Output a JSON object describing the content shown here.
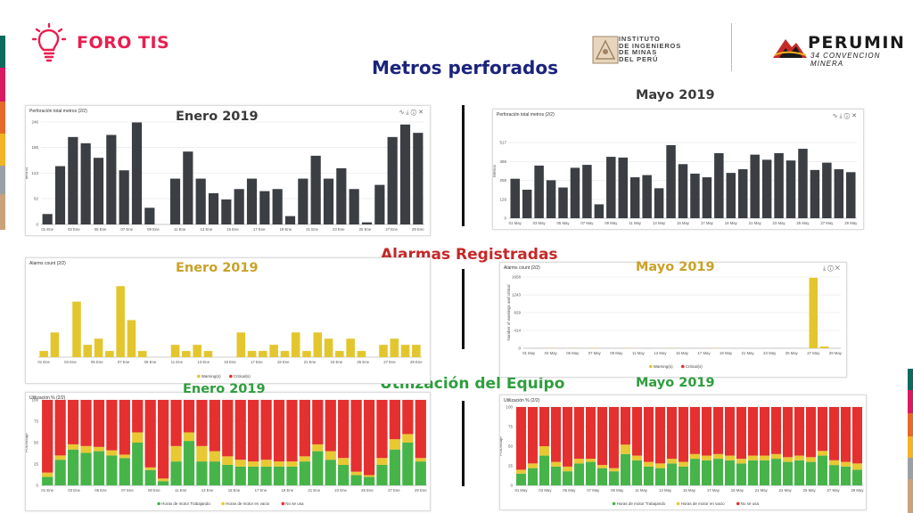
{
  "brand": {
    "name": "FORO TIS"
  },
  "logos": {
    "iimp": {
      "line1": "INSTITUTO",
      "line2": "DE INGENIEROS",
      "line3": "DE MINAS",
      "line4": "DEL PERÚ"
    },
    "perumin": {
      "name": "PERUMIN",
      "subtitle": "34 CONVENCION MINERA"
    }
  },
  "sections": {
    "metros": "Metros perforados",
    "alarmas": "Alarmas Registradas",
    "utilizacion": "Utilización del Equipo"
  },
  "months": {
    "enero": "Enero 2019",
    "mayo": "Mayo 2019"
  },
  "colors": {
    "title_blue": "#1a237e",
    "title_red": "#c62828",
    "title_green": "#2e9e3e",
    "month_dark": "#3a3a3a",
    "month_yellow": "#c9a227",
    "bar_dark": "#3b3e43",
    "warning_yellow": "#e3c62e",
    "critical_red": "#e03030",
    "worked_green": "#47b449",
    "idle_yellow": "#e8c833",
    "unused_red": "#e53030"
  },
  "chart_data": [
    {
      "id": "metros-enero",
      "type": "bar",
      "title": "Perforación total metros (2/2)",
      "ylabel": "Metros",
      "ylim": [
        0,
        246
      ],
      "yticks": [
        0,
        62,
        123,
        185,
        246
      ],
      "xtick_labels": [
        "01 Ene",
        "03 Ene",
        "05 Ene",
        "07 Ene",
        "09 Ene",
        "11 Ene",
        "13 Ene",
        "15 Ene",
        "17 Ene",
        "19 Ene",
        "21 Ene",
        "23 Ene",
        "25 Ene",
        "27 Ene",
        "29 Ene"
      ],
      "values": [
        25,
        140,
        210,
        195,
        160,
        215,
        130,
        245,
        40,
        0,
        110,
        175,
        110,
        75,
        60,
        85,
        110,
        80,
        85,
        20,
        110,
        165,
        110,
        135,
        85,
        5,
        95,
        210,
        240,
        220
      ]
    },
    {
      "id": "metros-mayo",
      "type": "bar",
      "title": "Perforación total metros (2/2)",
      "ylabel": "Metros",
      "ylim": [
        0,
        646
      ],
      "yticks": [
        0,
        129,
        258,
        388,
        517
      ],
      "xtick_labels": [
        "01 May",
        "03 May",
        "05 May",
        "07 May",
        "09 May",
        "11 May",
        "13 May",
        "15 May",
        "17 May",
        "19 May",
        "21 May",
        "23 May",
        "25 May",
        "27 May",
        "29 May"
      ],
      "values": [
        270,
        195,
        360,
        260,
        210,
        345,
        365,
        95,
        420,
        415,
        280,
        295,
        205,
        500,
        370,
        305,
        280,
        445,
        310,
        335,
        435,
        400,
        445,
        395,
        475,
        330,
        380,
        335,
        315
      ]
    },
    {
      "id": "alarmas-enero",
      "type": "bar",
      "title": "Alarms count (2/2)",
      "ylabel": "Number of warnings and critical",
      "ylim": [
        0,
        14
      ],
      "xtick_labels": [
        "01 Ene",
        "03 Ene",
        "05 Ene",
        "07 Ene",
        "09 Ene",
        "11 Ene",
        "13 Ene",
        "15 Ene",
        "17 Ene",
        "19 Ene",
        "21 Ene",
        "23 Ene",
        "25 Ene",
        "27 Ene",
        "29 Ene"
      ],
      "legend": [
        "Warning(s)",
        "Critical(s)"
      ],
      "series": [
        {
          "name": "Warning(s)",
          "values": [
            1,
            4,
            0,
            9,
            2,
            3,
            1,
            11.5,
            6,
            1,
            0,
            0,
            2,
            1,
            2,
            1,
            0,
            0,
            4,
            1,
            1,
            2,
            1,
            4,
            1,
            4,
            3,
            1,
            3,
            1,
            0,
            2,
            3,
            2,
            2
          ]
        },
        {
          "name": "Critical(s)",
          "values": [
            0,
            0,
            0,
            0,
            0,
            0,
            0,
            0,
            0,
            0,
            0,
            0,
            0,
            0,
            0,
            0,
            0,
            0,
            0,
            0,
            0,
            0,
            0,
            0,
            0,
            0,
            0,
            0,
            0,
            0,
            0,
            0,
            0,
            0,
            0
          ]
        }
      ]
    },
    {
      "id": "alarmas-mayo",
      "type": "bar",
      "title": "Alarms count (2/2)",
      "ylabel": "Number of warnings and critical",
      "ylim": [
        0,
        1658
      ],
      "yticks": [
        0,
        414,
        829,
        1243,
        1658
      ],
      "xtick_labels": [
        "01 May",
        "03 May",
        "05 May",
        "07 May",
        "09 May",
        "11 May",
        "13 May",
        "15 May",
        "17 May",
        "19 May",
        "21 May",
        "23 May",
        "25 May",
        "27 May",
        "29 May"
      ],
      "legend": [
        "Warning(s)",
        "Critical(s)"
      ],
      "series": [
        {
          "name": "Warning(s)",
          "values": [
            0,
            0,
            5,
            0,
            5,
            0,
            8,
            0,
            0,
            5,
            0,
            0,
            0,
            5,
            0,
            0,
            0,
            5,
            0,
            0,
            0,
            0,
            0,
            0,
            0,
            0,
            1640,
            40,
            0
          ]
        },
        {
          "name": "Critical(s)",
          "values": [
            0,
            0,
            0,
            0,
            0,
            0,
            0,
            0,
            0,
            0,
            0,
            0,
            0,
            0,
            0,
            0,
            0,
            0,
            0,
            0,
            0,
            0,
            0,
            0,
            0,
            0,
            0,
            0,
            0
          ]
        }
      ]
    },
    {
      "id": "utilizacion-enero",
      "type": "bar",
      "stacked": true,
      "title": "Utilización % (2/2)",
      "ylabel": "Porcentaje",
      "ylim": [
        0,
        100
      ],
      "yticks": [
        0,
        25,
        50,
        75,
        100
      ],
      "xtick_labels": [
        "01 Ene",
        "03 Ene",
        "05 Ene",
        "07 Ene",
        "09 Ene",
        "11 Ene",
        "13 Ene",
        "15 Ene",
        "17 Ene",
        "19 Ene",
        "21 Ene",
        "23 Ene",
        "25 Ene",
        "27 Ene",
        "29 Ene"
      ],
      "legend": [
        "Horas de motor Trabajando",
        "Horas de motor en vacio",
        "No se usa"
      ],
      "series": [
        {
          "name": "Horas de motor Trabajando",
          "values": [
            10,
            30,
            42,
            38,
            40,
            35,
            32,
            50,
            18,
            5,
            28,
            52,
            28,
            28,
            24,
            22,
            22,
            22,
            22,
            22,
            28,
            40,
            30,
            24,
            12,
            10,
            24,
            42,
            50,
            28
          ]
        },
        {
          "name": "Horas de motor en vacio",
          "values": [
            5,
            5,
            6,
            8,
            5,
            6,
            4,
            12,
            3,
            3,
            18,
            10,
            18,
            12,
            10,
            8,
            6,
            8,
            6,
            6,
            6,
            8,
            10,
            8,
            4,
            2,
            8,
            12,
            10,
            4
          ]
        },
        {
          "name": "No se usa",
          "values": [
            85,
            65,
            52,
            54,
            55,
            59,
            64,
            38,
            79,
            92,
            54,
            38,
            54,
            60,
            66,
            70,
            72,
            70,
            72,
            72,
            66,
            52,
            60,
            68,
            84,
            88,
            68,
            46,
            40,
            68
          ]
        }
      ]
    },
    {
      "id": "utilizacion-mayo",
      "type": "bar",
      "stacked": true,
      "title": "Utilización % (2/2)",
      "ylabel": "Porcentaje",
      "ylim": [
        0,
        100
      ],
      "yticks": [
        0,
        25,
        50,
        75,
        100
      ],
      "xtick_labels": [
        "01 May",
        "03 May",
        "05 May",
        "07 May",
        "09 May",
        "11 May",
        "13 May",
        "15 May",
        "17 May",
        "19 May",
        "21 May",
        "23 May",
        "25 May",
        "27 May",
        "29 May"
      ],
      "legend": [
        "Horas de motor Trabajando",
        "Horas de motor en vacio",
        "No se usa"
      ],
      "series": [
        {
          "name": "Horas de motor Trabajando",
          "values": [
            15,
            22,
            38,
            24,
            18,
            28,
            30,
            22,
            18,
            40,
            32,
            24,
            22,
            28,
            24,
            34,
            32,
            34,
            32,
            28,
            32,
            32,
            34,
            30,
            32,
            30,
            38,
            26,
            24,
            20
          ]
        },
        {
          "name": "Horas de motor en vacio",
          "values": [
            5,
            6,
            12,
            6,
            6,
            6,
            4,
            4,
            4,
            12,
            6,
            6,
            6,
            6,
            6,
            6,
            6,
            6,
            6,
            6,
            6,
            6,
            6,
            6,
            6,
            6,
            6,
            6,
            6,
            8
          ]
        },
        {
          "name": "No se usa",
          "values": [
            80,
            72,
            50,
            70,
            76,
            66,
            66,
            74,
            78,
            48,
            62,
            70,
            72,
            66,
            70,
            60,
            62,
            60,
            62,
            66,
            62,
            62,
            60,
            64,
            62,
            64,
            56,
            68,
            70,
            72
          ]
        }
      ]
    }
  ]
}
